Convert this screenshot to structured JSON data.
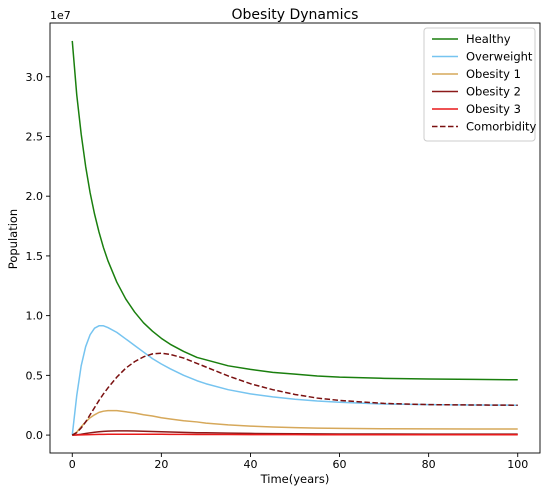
{
  "chart_data": {
    "type": "line",
    "title": "Obesity Dynamics",
    "xlabel": "Time(years)",
    "ylabel": "Population",
    "y_scale_label": "1e7",
    "y_scale": 10000000,
    "xlim": [
      -5,
      105
    ],
    "ylim": [
      -1500000,
      34500000
    ],
    "x_ticks": [
      0,
      20,
      40,
      60,
      80,
      100
    ],
    "x_tick_labels": [
      "0",
      "20",
      "40",
      "60",
      "80",
      "100"
    ],
    "y_ticks": [
      0,
      5000000,
      10000000,
      15000000,
      20000000,
      25000000,
      30000000
    ],
    "y_tick_labels": [
      "0.0",
      "0.5",
      "1.0",
      "1.5",
      "2.0",
      "2.5",
      "3.0"
    ],
    "grid": false,
    "legend_position": "top-right",
    "x": [
      0,
      1,
      2,
      3,
      4,
      5,
      6,
      7,
      8,
      10,
      12,
      14,
      16,
      18,
      20,
      22,
      25,
      28,
      30,
      35,
      40,
      45,
      50,
      55,
      60,
      70,
      80,
      90,
      100
    ],
    "series": [
      {
        "name": "Healthy",
        "color": "#1a7f0e",
        "style": "solid",
        "values": [
          33000000,
          28500000,
          25200000,
          22500000,
          20300000,
          18500000,
          17000000,
          15700000,
          14600000,
          12800000,
          11400000,
          10300000,
          9400000,
          8700000,
          8100000,
          7600000,
          7000000,
          6500000,
          6300000,
          5800000,
          5500000,
          5250000,
          5100000,
          4950000,
          4850000,
          4750000,
          4700000,
          4660000,
          4630000
        ]
      },
      {
        "name": "Overweight",
        "color": "#76c4f0",
        "style": "solid",
        "values": [
          0,
          3300000,
          5800000,
          7400000,
          8400000,
          8950000,
          9150000,
          9150000,
          9000000,
          8600000,
          8050000,
          7500000,
          6950000,
          6400000,
          5950000,
          5550000,
          5000000,
          4550000,
          4300000,
          3800000,
          3450000,
          3200000,
          3000000,
          2850000,
          2750000,
          2600000,
          2550000,
          2520000,
          2500000
        ]
      },
      {
        "name": "Obesity 1",
        "color": "#d6a85a",
        "style": "solid",
        "values": [
          0,
          250000,
          700000,
          1100000,
          1450000,
          1700000,
          1900000,
          2000000,
          2050000,
          2050000,
          1950000,
          1850000,
          1700000,
          1600000,
          1450000,
          1350000,
          1200000,
          1100000,
          1000000,
          850000,
          750000,
          680000,
          620000,
          580000,
          560000,
          530000,
          520000,
          510000,
          510000
        ]
      },
      {
        "name": "Obesity 2",
        "color": "#8c1a1a",
        "style": "solid",
        "values": [
          0,
          20000,
          70000,
          130000,
          190000,
          240000,
          280000,
          310000,
          330000,
          350000,
          350000,
          340000,
          320000,
          300000,
          280000,
          260000,
          230000,
          200000,
          190000,
          160000,
          140000,
          120000,
          110000,
          100000,
          95000,
          90000,
          85000,
          85000,
          80000
        ]
      },
      {
        "name": "Obesity 3",
        "color": "#e8191a",
        "style": "solid",
        "values": [
          0,
          5000,
          15000,
          25000,
          35000,
          45000,
          55000,
          60000,
          65000,
          70000,
          70000,
          70000,
          70000,
          65000,
          65000,
          60000,
          55000,
          50000,
          50000,
          45000,
          40000,
          35000,
          35000,
          30000,
          30000,
          30000,
          25000,
          25000,
          25000
        ]
      },
      {
        "name": "Comorbidity",
        "color": "#7a1010",
        "style": "dashed",
        "values": [
          0,
          200000,
          600000,
          1100000,
          1700000,
          2300000,
          2900000,
          3450000,
          3950000,
          4850000,
          5600000,
          6150000,
          6550000,
          6800000,
          6850000,
          6750000,
          6450000,
          6000000,
          5700000,
          4950000,
          4300000,
          3800000,
          3400000,
          3100000,
          2900000,
          2650000,
          2550000,
          2520000,
          2500000
        ]
      }
    ]
  }
}
